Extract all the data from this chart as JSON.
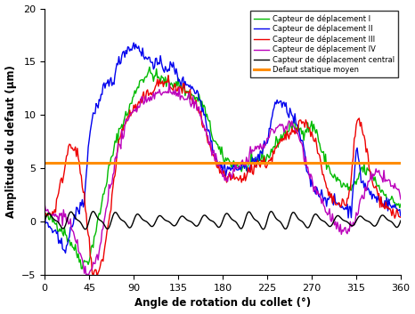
{
  "xlabel": "Angle de rotation du collet (°)",
  "ylabel": "Amplitude du defaut (μm)",
  "xlim": [
    0,
    360
  ],
  "ylim": [
    -5,
    20
  ],
  "yticks": [
    -5,
    0,
    5,
    10,
    15,
    20
  ],
  "xticks": [
    0,
    45,
    90,
    135,
    180,
    225,
    270,
    315,
    360
  ],
  "defaut_statique_moyen": 5.5,
  "colors": {
    "I": "#00bb00",
    "II": "#0000ee",
    "III": "#ee0000",
    "IV": "#bb00bb",
    "central": "#000000",
    "moyen": "#ff8c00"
  },
  "legend_labels": [
    "Capteur de déplacement I",
    "Capteur de déplacement II",
    "Capteur de déplacement III",
    "Capteur de déplacement IV",
    "Capteur de déplacement central",
    "Defaut statique moyen"
  ]
}
